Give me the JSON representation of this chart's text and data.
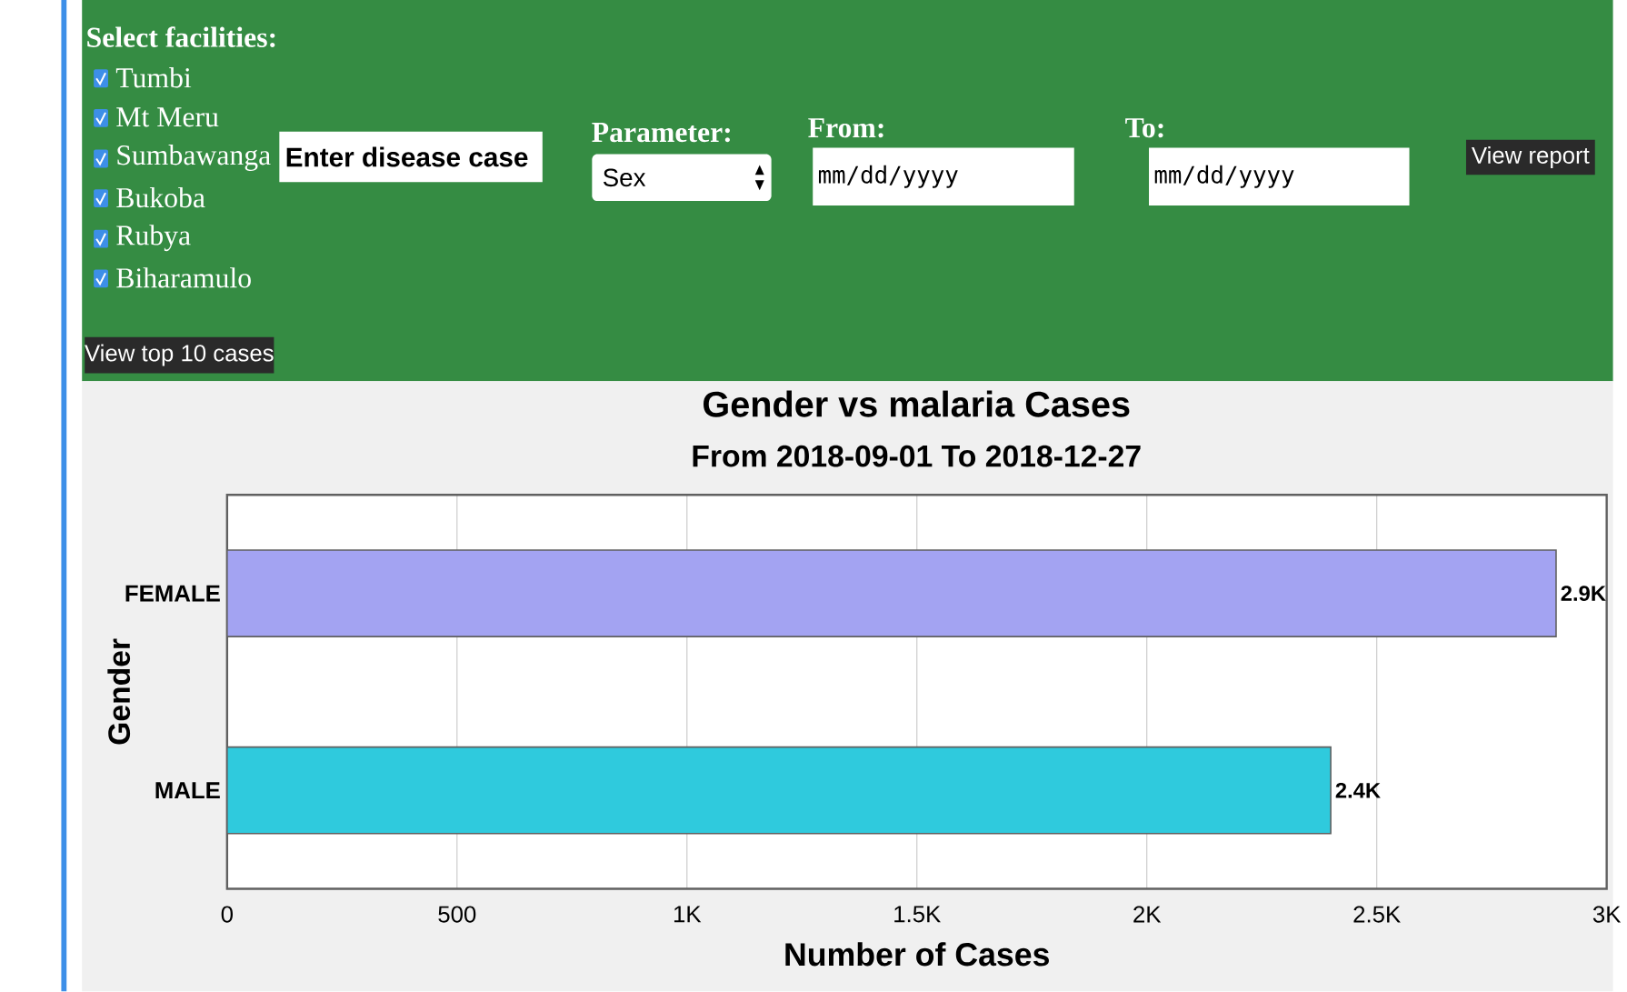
{
  "chart_data": {
    "type": "bar",
    "orientation": "horizontal",
    "title": "Gender vs malaria Cases",
    "subtitle": "From 2018-09-01 To 2018-12-27",
    "xlabel": "Number of Cases",
    "ylabel": "Gender",
    "categories": [
      "FEMALE",
      "MALE"
    ],
    "values": [
      2890,
      2400
    ],
    "colors": [
      "#a3a3f2",
      "#2fcadd"
    ],
    "value_labels": [
      "2.9K",
      "2.4K"
    ],
    "xlim": [
      0,
      3000
    ],
    "xticks": [
      0,
      500,
      {
        "value": 1000,
        "label": "1K"
      },
      {
        "value": 1500,
        "label": "1.5K"
      },
      {
        "value": 2000,
        "label": "2K"
      },
      {
        "value": 2500,
        "label": "2.5K"
      },
      {
        "value": 3000,
        "label": "3K"
      }
    ],
    "grid": "x",
    "annotations": [
      "Select facilities:",
      "Tumbi",
      "Mt Meru",
      "Sumbawanga",
      "Bukoba",
      "Rubya",
      "Biharamulo",
      "Enter disease case",
      "Parameter:",
      "Sex",
      "From:",
      "mm/dd/yyyy",
      "To:",
      "mm/dd/yyyy",
      "View report",
      "View top 10 cases"
    ]
  }
}
